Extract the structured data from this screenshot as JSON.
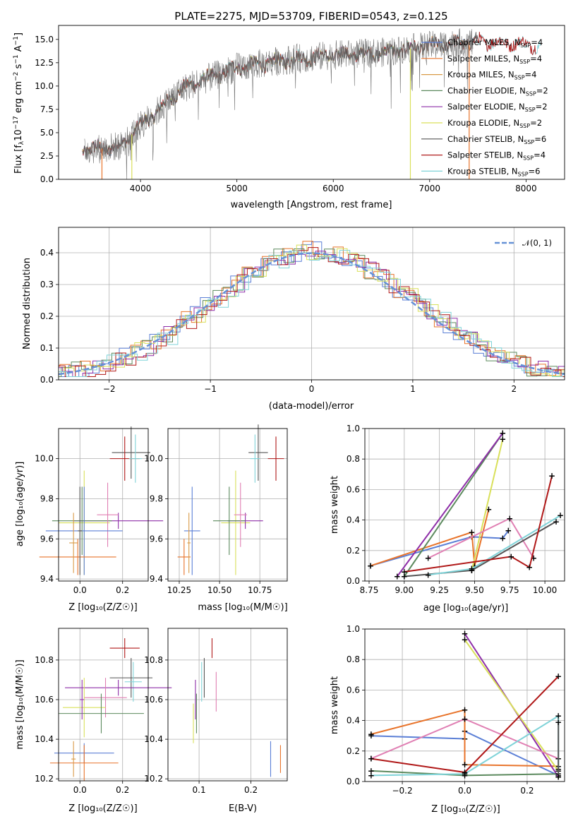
{
  "colors": {
    "chabrier_miles": "#5b7fd6",
    "salpeter_miles": "#e8732a",
    "kroupa_miles": "#d99a47",
    "chabrier_elodie": "#5c8a5e",
    "salpeter_elodie": "#8e2ea8",
    "kroupa_elodie": "#d9e05a",
    "chabrier_stelib": "#555555",
    "salpeter_stelib": "#b01818",
    "kroupa_stelib": "#7fd3d8",
    "pink": "#e07fb3",
    "gaussian": "#6591d6"
  },
  "legend": [
    {
      "label": "Chabrier MILES, N",
      "sub": "SSP",
      "suffix": "=4",
      "color": "#5b7fd6"
    },
    {
      "label": "Salpeter MILES, N",
      "sub": "SSP",
      "suffix": "=4",
      "color": "#e8732a"
    },
    {
      "label": "Kroupa MILES, N",
      "sub": "SSP",
      "suffix": "=4",
      "color": "#d99a47"
    },
    {
      "label": "Chabrier ELODIE, N",
      "sub": "SSP",
      "suffix": "=2",
      "color": "#5c8a5e"
    },
    {
      "label": "Salpeter ELODIE, N",
      "sub": "SSP",
      "suffix": "=2",
      "color": "#8e2ea8"
    },
    {
      "label": "Kroupa ELODIE, N",
      "sub": "SSP",
      "suffix": "=2",
      "color": "#d9e05a"
    },
    {
      "label": "Chabrier STELIB, N",
      "sub": "SSP",
      "suffix": "=6",
      "color": "#555555"
    },
    {
      "label": "Salpeter STELIB, N",
      "sub": "SSP",
      "suffix": "=4",
      "color": "#b01818"
    },
    {
      "label": "Kroupa STELIB, N",
      "sub": "SSP",
      "suffix": "=6",
      "color": "#7fd3d8"
    }
  ],
  "chart_data": [
    {
      "type": "line",
      "title": "PLATE=2275, MJD=53709, FIBERID=0543, z=0.125",
      "xlabel": "wavelength [Angstrom, rest frame]",
      "ylabel": "Flux [f_λ 10^-17 erg cm^-2 s^-1 A^-1]",
      "xlim": [
        3150,
        8400
      ],
      "ylim": [
        0,
        16.5
      ],
      "xticks": [
        4000,
        5000,
        6000,
        7000,
        8000
      ],
      "yticks": [
        0.0,
        2.5,
        5.0,
        7.5,
        10.0,
        12.5,
        15.0
      ],
      "spectrum_trend": {
        "x": [
          3400,
          3600,
          3800,
          4000,
          4200,
          4400,
          4600,
          4800,
          5000,
          5200,
          5500,
          6000,
          6500,
          7000,
          7500,
          8000,
          8200
        ],
        "y": [
          3.2,
          3.3,
          3.6,
          5.8,
          7.5,
          9.5,
          10.5,
          11.2,
          12.0,
          12.3,
          12.8,
          13.3,
          13.6,
          14.3,
          14.8,
          14.5,
          14.2
        ]
      }
    },
    {
      "type": "histogram",
      "xlabel": "(data-model)/error",
      "ylabel": "Normed distribution",
      "xlim": [
        -2.5,
        2.5
      ],
      "ylim": [
        0,
        0.48
      ],
      "xticks": [
        -2,
        -1,
        0,
        1,
        2
      ],
      "yticks": [
        0.0,
        0.1,
        0.2,
        0.3,
        0.4
      ],
      "legend": "𝒩(0, 1)",
      "grid": true
    },
    {
      "type": "scatter",
      "xlabel": "Z [log₁₀(Z/Z☉)]",
      "ylabel": "age  [log₁₀(age/yr)]",
      "xlim": [
        -0.1,
        0.32
      ],
      "ylim": [
        9.39,
        10.15
      ],
      "xticks": [
        0.0,
        0.2
      ],
      "yticks": [
        9.4,
        9.6,
        9.8,
        10.0
      ]
    },
    {
      "type": "scatter",
      "xlabel": "mass [log₁₀(M/M☉)]",
      "xlim": [
        10.18,
        10.92
      ],
      "ylim": [
        9.39,
        10.15
      ],
      "xticks": [
        10.25,
        10.5,
        10.75
      ],
      "yticks": [
        9.4,
        9.6,
        9.8,
        10.0
      ]
    },
    {
      "type": "line",
      "xlabel": "age  [log₁₀(age/yr)]",
      "ylabel": "mass weight",
      "xlim": [
        8.72,
        10.14
      ],
      "ylim": [
        0,
        1.0
      ],
      "xticks": [
        8.75,
        9.0,
        9.25,
        9.5,
        9.75,
        10.0
      ],
      "yticks": [
        0.0,
        0.2,
        0.4,
        0.6,
        0.8,
        1.0
      ],
      "grid": true
    },
    {
      "type": "scatter",
      "xlabel": "Z [log₁₀(Z/Z☉)]",
      "ylabel": "mass [log₁₀(M/M☉)]",
      "xlim": [
        -0.1,
        0.32
      ],
      "ylim": [
        10.19,
        10.96
      ],
      "xticks": [
        0.0,
        0.2
      ],
      "yticks": [
        10.2,
        10.4,
        10.6,
        10.8
      ]
    },
    {
      "type": "scatter",
      "xlabel": "E(B-V)",
      "xlim": [
        0.04,
        0.27
      ],
      "ylim": [
        10.19,
        10.96
      ],
      "xticks": [
        0.1,
        0.2
      ],
      "yticks": [
        10.2,
        10.4,
        10.6,
        10.8
      ]
    },
    {
      "type": "line",
      "xlabel": "Z [log₁₀(Z/Z☉)]",
      "ylabel": "mass weight",
      "xlim": [
        -0.32,
        0.32
      ],
      "ylim": [
        0,
        1.0
      ],
      "xticks": [
        -0.2,
        0.0,
        0.2
      ],
      "yticks": [
        0.0,
        0.2,
        0.4,
        0.6,
        0.8,
        1.0
      ],
      "grid": true
    }
  ]
}
